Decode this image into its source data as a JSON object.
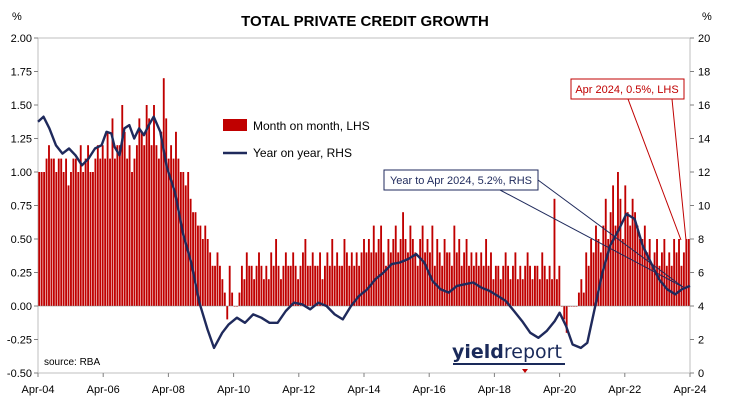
{
  "chart_data": {
    "type": "bar+line",
    "title": "TOTAL PRIVATE CREDIT GROWTH",
    "lhs_unit": "%",
    "rhs_unit": "%",
    "ylim_left": [
      -0.5,
      2.0
    ],
    "ylim_right": [
      0,
      20
    ],
    "left_ticks": [
      "2.00",
      "1.75",
      "1.50",
      "1.25",
      "1.00",
      "0.75",
      "0.50",
      "0.25",
      "0.00",
      "-0.25",
      "-0.50"
    ],
    "right_ticks": [
      "20",
      "18",
      "16",
      "14",
      "12",
      "10",
      "8",
      "6",
      "4",
      "2",
      "0"
    ],
    "x_ticks": [
      "Apr-04",
      "Apr-06",
      "Apr-08",
      "Apr-10",
      "Apr-12",
      "Apr-14",
      "Apr-16",
      "Apr-18",
      "Apr-20",
      "Apr-22",
      "Apr-24"
    ],
    "x_start": "Apr-04",
    "x_end": "Apr-24",
    "legend": {
      "position": "center-left",
      "bar_label": "Month on month, LHS",
      "line_label": "Year on year, RHS"
    },
    "series": [
      {
        "name": "Month on month, LHS",
        "axis": "left",
        "type": "bar",
        "color": "#c00000",
        "values": [
          1.0,
          1.0,
          1.0,
          1.1,
          1.2,
          1.1,
          1.1,
          1.0,
          1.1,
          1.1,
          1.0,
          1.1,
          0.9,
          1.0,
          1.1,
          1.1,
          1.0,
          1.2,
          1.0,
          1.1,
          1.2,
          1.0,
          1.0,
          1.1,
          1.2,
          1.1,
          1.2,
          1.1,
          1.3,
          1.1,
          1.4,
          1.1,
          1.2,
          1.2,
          1.5,
          1.3,
          1.1,
          1.2,
          1.0,
          1.1,
          1.2,
          1.4,
          1.3,
          1.2,
          1.5,
          1.4,
          1.2,
          1.5,
          1.2,
          1.1,
          1.3,
          1.7,
          1.4,
          1.1,
          1.2,
          1.1,
          1.3,
          1.1,
          1.0,
          1.0,
          0.9,
          1.0,
          0.8,
          0.7,
          0.7,
          0.6,
          0.6,
          0.5,
          0.6,
          0.5,
          0.4,
          0.3,
          0.3,
          0.4,
          0.3,
          0.2,
          0.1,
          -0.1,
          0.3,
          0.1,
          0.0,
          0.0,
          0.1,
          0.3,
          0.2,
          0.4,
          0.3,
          0.3,
          0.2,
          0.3,
          0.4,
          0.3,
          0.2,
          0.3,
          0.2,
          0.4,
          0.3,
          0.5,
          0.3,
          0.2,
          0.3,
          0.4,
          0.3,
          0.3,
          0.4,
          0.3,
          0.2,
          0.3,
          0.4,
          0.5,
          0.3,
          0.3,
          0.4,
          0.3,
          0.3,
          0.4,
          0.2,
          0.3,
          0.4,
          0.3,
          0.5,
          0.3,
          0.4,
          0.3,
          0.3,
          0.5,
          0.4,
          0.3,
          0.4,
          0.3,
          0.4,
          0.3,
          0.4,
          0.5,
          0.4,
          0.5,
          0.4,
          0.6,
          0.4,
          0.5,
          0.6,
          0.4,
          0.3,
          0.5,
          0.4,
          0.5,
          0.6,
          0.4,
          0.5,
          0.7,
          0.5,
          0.4,
          0.6,
          0.5,
          0.4,
          0.3,
          0.5,
          0.6,
          0.4,
          0.5,
          0.4,
          0.6,
          0.3,
          0.5,
          0.4,
          0.3,
          0.5,
          0.4,
          0.4,
          0.3,
          0.6,
          0.4,
          0.5,
          0.3,
          0.4,
          0.5,
          0.3,
          0.4,
          0.3,
          0.4,
          0.3,
          0.4,
          0.3,
          0.5,
          0.3,
          0.4,
          0.2,
          0.3,
          0.3,
          0.2,
          0.3,
          0.4,
          0.3,
          0.2,
          0.3,
          0.4,
          0.2,
          0.3,
          0.2,
          0.3,
          0.4,
          0.3,
          0.2,
          0.3,
          0.3,
          0.2,
          0.4,
          0.3,
          0.2,
          0.3,
          0.2,
          0.8,
          0.2,
          0.3,
          0.0,
          -0.1,
          -0.2,
          0.0,
          0.0,
          0.0,
          0.0,
          0.1,
          0.2,
          0.1,
          0.4,
          0.3,
          0.5,
          0.4,
          0.6,
          0.5,
          0.4,
          0.6,
          0.8,
          0.5,
          0.7,
          0.9,
          0.6,
          1.0,
          0.8,
          0.5,
          0.9,
          0.7,
          0.6,
          0.8,
          0.7,
          0.6,
          0.5,
          0.5,
          0.6,
          0.4,
          0.5,
          0.3,
          0.4,
          0.5,
          0.3,
          0.4,
          0.5,
          0.3,
          0.4,
          0.3,
          0.5,
          0.4,
          0.5,
          0.3,
          0.4,
          0.5,
          0.5
        ]
      },
      {
        "name": "Year on year, RHS",
        "axis": "right",
        "type": "line",
        "color": "#1f2a5c",
        "points": [
          [
            2004.25,
            15.0
          ],
          [
            2004.42,
            15.3
          ],
          [
            2004.6,
            14.6
          ],
          [
            2004.8,
            13.6
          ],
          [
            2005.0,
            13.1
          ],
          [
            2005.2,
            13.4
          ],
          [
            2005.4,
            13.0
          ],
          [
            2005.6,
            12.4
          ],
          [
            2005.8,
            12.8
          ],
          [
            2006.0,
            13.4
          ],
          [
            2006.2,
            13.6
          ],
          [
            2006.35,
            14.4
          ],
          [
            2006.5,
            14.3
          ],
          [
            2006.6,
            13.5
          ],
          [
            2006.75,
            13.0
          ],
          [
            2006.9,
            14.6
          ],
          [
            2007.05,
            14.8
          ],
          [
            2007.2,
            14.0
          ],
          [
            2007.35,
            14.6
          ],
          [
            2007.5,
            14.2
          ],
          [
            2007.65,
            14.8
          ],
          [
            2007.8,
            15.3
          ],
          [
            2008.0,
            14.4
          ],
          [
            2008.2,
            12.3
          ],
          [
            2008.45,
            10.8
          ],
          [
            2008.7,
            8.3
          ],
          [
            2008.95,
            6.6
          ],
          [
            2009.2,
            4.2
          ],
          [
            2009.45,
            2.6
          ],
          [
            2009.65,
            1.5
          ],
          [
            2009.9,
            2.4
          ],
          [
            2010.1,
            2.9
          ],
          [
            2010.35,
            3.3
          ],
          [
            2010.6,
            3.0
          ],
          [
            2010.85,
            3.5
          ],
          [
            2011.1,
            3.3
          ],
          [
            2011.35,
            3.0
          ],
          [
            2011.6,
            3.0
          ],
          [
            2011.85,
            3.7
          ],
          [
            2012.1,
            4.2
          ],
          [
            2012.35,
            4.1
          ],
          [
            2012.6,
            3.8
          ],
          [
            2012.85,
            4.2
          ],
          [
            2013.1,
            4.0
          ],
          [
            2013.35,
            3.5
          ],
          [
            2013.6,
            3.2
          ],
          [
            2013.85,
            4.0
          ],
          [
            2014.1,
            4.6
          ],
          [
            2014.35,
            5.0
          ],
          [
            2014.6,
            5.6
          ],
          [
            2014.85,
            6.0
          ],
          [
            2015.1,
            6.5
          ],
          [
            2015.35,
            6.6
          ],
          [
            2015.6,
            6.8
          ],
          [
            2015.85,
            7.1
          ],
          [
            2016.1,
            6.6
          ],
          [
            2016.35,
            5.5
          ],
          [
            2016.6,
            5.0
          ],
          [
            2016.85,
            4.8
          ],
          [
            2017.1,
            5.2
          ],
          [
            2017.35,
            5.3
          ],
          [
            2017.6,
            5.4
          ],
          [
            2017.85,
            5.1
          ],
          [
            2018.1,
            4.9
          ],
          [
            2018.35,
            4.6
          ],
          [
            2018.6,
            4.3
          ],
          [
            2018.85,
            3.7
          ],
          [
            2019.1,
            3.1
          ],
          [
            2019.35,
            2.4
          ],
          [
            2019.6,
            2.1
          ],
          [
            2019.85,
            2.5
          ],
          [
            2020.1,
            3.1
          ],
          [
            2020.25,
            3.6
          ],
          [
            2020.45,
            2.8
          ],
          [
            2020.65,
            1.7
          ],
          [
            2020.9,
            1.5
          ],
          [
            2021.1,
            1.8
          ],
          [
            2021.3,
            3.6
          ],
          [
            2021.55,
            5.9
          ],
          [
            2021.8,
            7.6
          ],
          [
            2022.05,
            8.5
          ],
          [
            2022.3,
            9.5
          ],
          [
            2022.55,
            9.2
          ],
          [
            2022.8,
            7.6
          ],
          [
            2023.05,
            6.6
          ],
          [
            2023.3,
            5.6
          ],
          [
            2023.55,
            5.0
          ],
          [
            2023.8,
            4.7
          ],
          [
            2024.0,
            5.0
          ],
          [
            2024.25,
            5.2
          ]
        ]
      }
    ],
    "annotations": [
      {
        "text": "Apr 2024, 0.5%, LHS",
        "color": "#c00000"
      },
      {
        "text": "Year to Apr 2024, 5.2%, RHS",
        "color": "#1f2a5c"
      }
    ],
    "source": "source: RBA",
    "logo": "yieldreport"
  }
}
